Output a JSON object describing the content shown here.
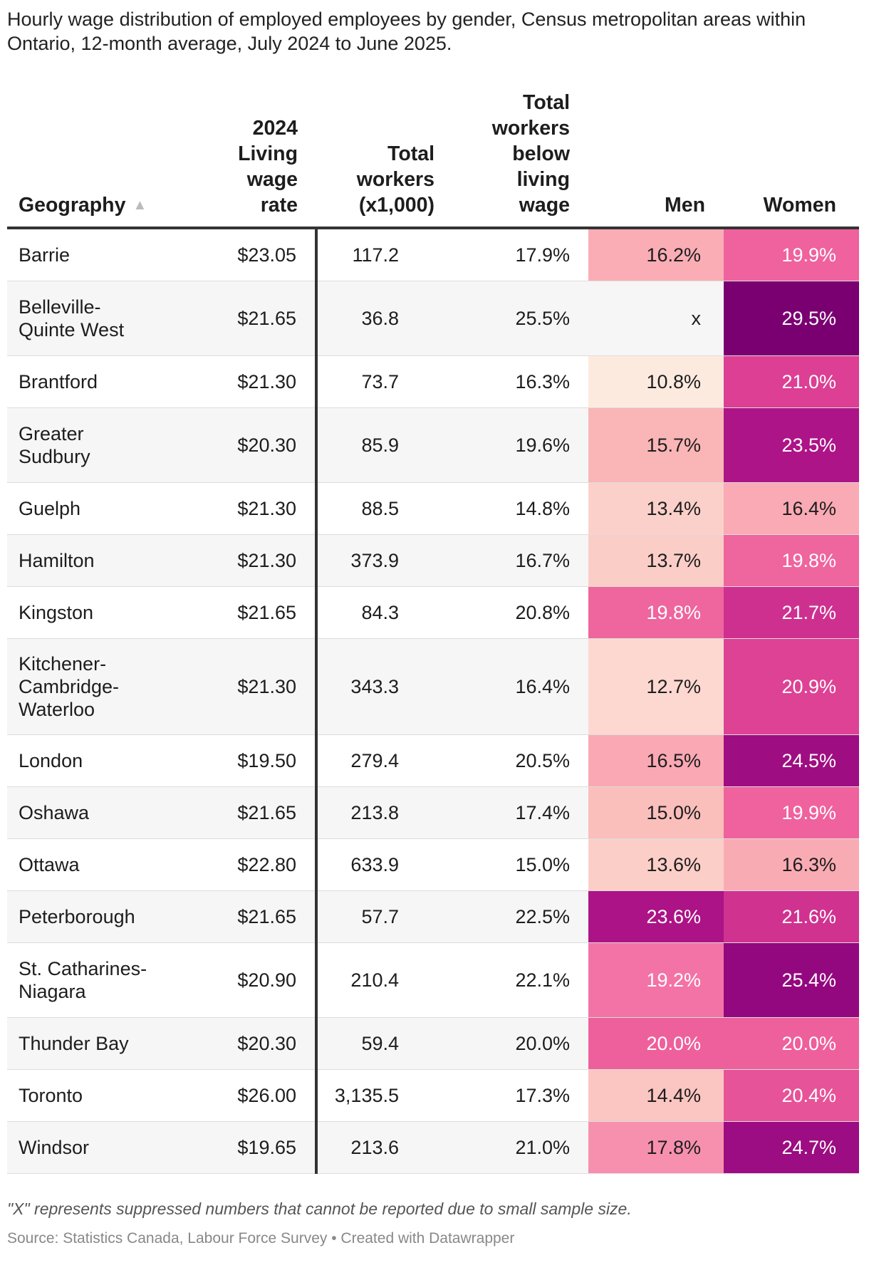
{
  "title": "Hourly wage distribution of employed employees by gender, Census metropolitan areas within Ontario, 12-month average, July 2024 to June 2025.",
  "headers": {
    "geography": "Geography",
    "rate": [
      "2024",
      "Living",
      "wage",
      "rate"
    ],
    "total": [
      "Total",
      "workers",
      "(x1,000)"
    ],
    "below": [
      "Total",
      "workers",
      "below",
      "living",
      "wage"
    ],
    "men": "Men",
    "women": "Women"
  },
  "sort_icon": "sort-ascending-icon",
  "colors": {
    "header_rule": "#333333",
    "row_alt": "#f6f6f6",
    "heat_low": "#fde9df",
    "heat_high": "#7a0072"
  },
  "chart_data": {
    "type": "table",
    "title": "Hourly wage distribution of employed employees by gender, Census metropolitan areas within Ontario, 12-month average, July 2024 to June 2025.",
    "columns": [
      "Geography",
      "2024 Living wage rate",
      "Total workers (x1,000)",
      "Total workers below living wage",
      "Men",
      "Women"
    ],
    "rows": [
      {
        "geography": [
          "Barrie"
        ],
        "rate": "$23.05",
        "total": "117.2",
        "below": "17.9%",
        "men": "16.2%",
        "women": "19.9%",
        "men_v": 16.2,
        "women_v": 19.9
      },
      {
        "geography": [
          "Belleville-",
          "Quinte West"
        ],
        "rate": "$21.65",
        "total": "36.8",
        "below": "25.5%",
        "men": "x",
        "women": "29.5%",
        "men_v": null,
        "women_v": 29.5
      },
      {
        "geography": [
          "Brantford"
        ],
        "rate": "$21.30",
        "total": "73.7",
        "below": "16.3%",
        "men": "10.8%",
        "women": "21.0%",
        "men_v": 10.8,
        "women_v": 21.0
      },
      {
        "geography": [
          "Greater",
          "Sudbury"
        ],
        "rate": "$20.30",
        "total": "85.9",
        "below": "19.6%",
        "men": "15.7%",
        "women": "23.5%",
        "men_v": 15.7,
        "women_v": 23.5
      },
      {
        "geography": [
          "Guelph"
        ],
        "rate": "$21.30",
        "total": "88.5",
        "below": "14.8%",
        "men": "13.4%",
        "women": "16.4%",
        "men_v": 13.4,
        "women_v": 16.4
      },
      {
        "geography": [
          "Hamilton"
        ],
        "rate": "$21.30",
        "total": "373.9",
        "below": "16.7%",
        "men": "13.7%",
        "women": "19.8%",
        "men_v": 13.7,
        "women_v": 19.8
      },
      {
        "geography": [
          "Kingston"
        ],
        "rate": "$21.65",
        "total": "84.3",
        "below": "20.8%",
        "men": "19.8%",
        "women": "21.7%",
        "men_v": 19.8,
        "women_v": 21.7
      },
      {
        "geography": [
          "Kitchener-",
          "Cambridge-",
          "Waterloo"
        ],
        "rate": "$21.30",
        "total": "343.3",
        "below": "16.4%",
        "men": "12.7%",
        "women": "20.9%",
        "men_v": 12.7,
        "women_v": 20.9
      },
      {
        "geography": [
          "London"
        ],
        "rate": "$19.50",
        "total": "279.4",
        "below": "20.5%",
        "men": "16.5%",
        "women": "24.5%",
        "men_v": 16.5,
        "women_v": 24.5
      },
      {
        "geography": [
          "Oshawa"
        ],
        "rate": "$21.65",
        "total": "213.8",
        "below": "17.4%",
        "men": "15.0%",
        "women": "19.9%",
        "men_v": 15.0,
        "women_v": 19.9
      },
      {
        "geography": [
          "Ottawa"
        ],
        "rate": "$22.80",
        "total": "633.9",
        "below": "15.0%",
        "men": "13.6%",
        "women": "16.3%",
        "men_v": 13.6,
        "women_v": 16.3
      },
      {
        "geography": [
          "Peterborough"
        ],
        "rate": "$21.65",
        "total": "57.7",
        "below": "22.5%",
        "men": "23.6%",
        "women": "21.6%",
        "men_v": 23.6,
        "women_v": 21.6
      },
      {
        "geography": [
          "St. Catharines-",
          "Niagara"
        ],
        "rate": "$20.90",
        "total": "210.4",
        "below": "22.1%",
        "men": "19.2%",
        "women": "25.4%",
        "men_v": 19.2,
        "women_v": 25.4
      },
      {
        "geography": [
          "Thunder Bay"
        ],
        "rate": "$20.30",
        "total": "59.4",
        "below": "20.0%",
        "men": "20.0%",
        "women": "20.0%",
        "men_v": 20.0,
        "women_v": 20.0
      },
      {
        "geography": [
          "Toronto"
        ],
        "rate": "$26.00",
        "total": "3,135.5",
        "below": "17.3%",
        "men": "14.4%",
        "women": "20.4%",
        "men_v": 14.4,
        "women_v": 20.4
      },
      {
        "geography": [
          "Windsor"
        ],
        "rate": "$19.65",
        "total": "213.6",
        "below": "21.0%",
        "men": "17.8%",
        "women": "24.7%",
        "men_v": 17.8,
        "women_v": 24.7
      }
    ]
  },
  "notes": "\"X\" represents suppressed numbers that cannot be reported due to small sample size.",
  "source": "Source: Statistics Canada, Labour Force Survey • Created with Datawrapper"
}
